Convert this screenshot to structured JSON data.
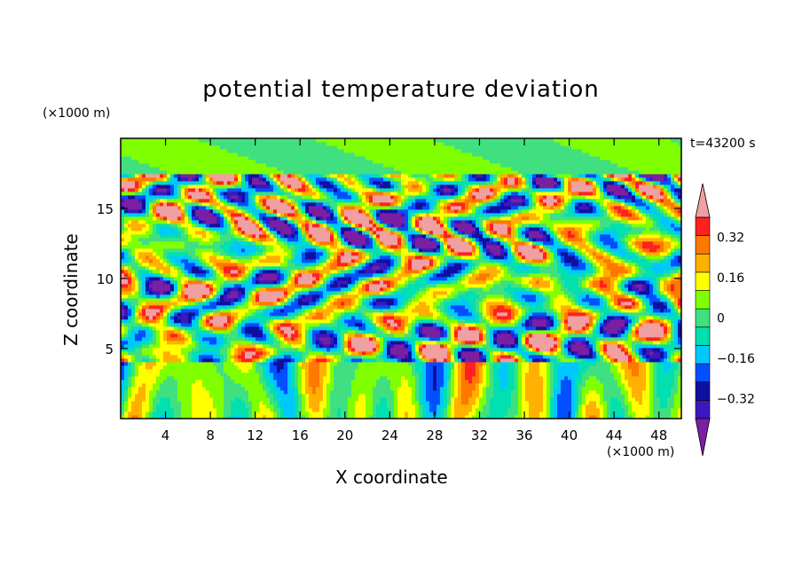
{
  "chart_data": {
    "type": "heatmap",
    "title": "potential temperature deviation",
    "xlabel": "X coordinate",
    "ylabel": "Z coordinate",
    "x_unit": "(×1000 m)",
    "y_unit": "(×1000 m)",
    "time_label": "t=43200 s",
    "xlim": [
      0,
      50
    ],
    "ylim": [
      0,
      20
    ],
    "x_ticks": [
      4,
      8,
      12,
      16,
      20,
      24,
      28,
      32,
      36,
      40,
      44,
      48
    ],
    "y_ticks": [
      5,
      10,
      15
    ],
    "colorbar": {
      "levels": [
        -0.48,
        -0.4,
        -0.32,
        -0.24,
        -0.16,
        -0.08,
        0,
        0.08,
        0.16,
        0.24,
        0.32,
        0.4,
        0.48
      ],
      "tick_labels": [
        "0.32",
        "0.16",
        "0",
        "−0.16",
        "−0.32"
      ],
      "tick_values": [
        0.32,
        0.16,
        0,
        -0.16,
        -0.32
      ],
      "colors": [
        "#7b1fa2",
        "#3a18c0",
        "#1010a0",
        "#0050ff",
        "#00c8ff",
        "#00e0b0",
        "#40e080",
        "#80ff00",
        "#ffff00",
        "#ffb000",
        "#ff7800",
        "#ff2020",
        "#f0a0a0"
      ],
      "extend": "both"
    },
    "layers": [
      {
        "z_range": [
          0,
          4
        ],
        "pattern": "vertical columns",
        "amplitude": 0.3
      },
      {
        "z_range": [
          4,
          17.5
        ],
        "pattern": "horizontal lenses",
        "amplitude": 0.5
      },
      {
        "z_range": [
          17.5,
          20
        ],
        "pattern": "smooth",
        "amplitude": 0.08
      }
    ]
  }
}
